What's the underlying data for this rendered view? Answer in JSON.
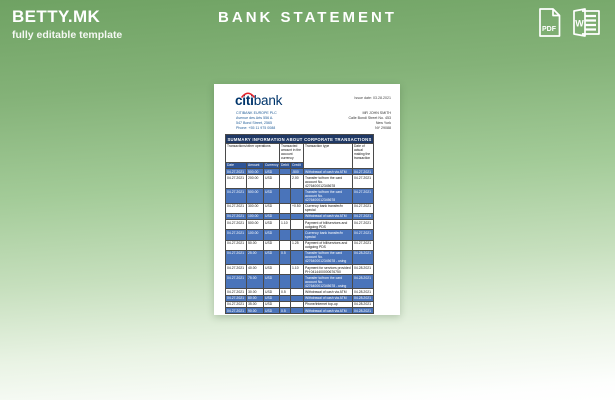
{
  "header": {
    "brand": "BETTY.MK",
    "tagline": "fully editable template",
    "title": "BANK STATEMENT",
    "pdf_icon_label": "PDF",
    "word_icon_label": "W"
  },
  "colors": {
    "background_green_top": "#6fa263",
    "background_bottom": "#ffffff",
    "table_title_navy": "#1f3864",
    "table_subheader_blue": "#2f5597",
    "row_highlight_blue": "#4a74ba",
    "logo_blue": "#00356b",
    "logo_arc_red": "#e8232a"
  },
  "document": {
    "logo_citi": "citi",
    "logo_bank": "bank",
    "bank_lines": [
      "CITIBANK EUROPE PLC",
      "Avenue des Arts 556 A.",
      "547 Bond Street, 2565",
      "Phone: +55 11 975 0088"
    ],
    "issue_date": "Issue date: 03.28.2021",
    "recipient_lines": [
      "MR JOHN SMITH",
      "Calle Bondi Street No. 453",
      "New York",
      "NY 29088"
    ],
    "table": {
      "title": "SUMMARY INFORMATION ABOUT CORPORATE TRANSACTIONS",
      "groups": [
        "Transactions/other operations",
        "Transacted amount in the account currency",
        "Transaction type",
        "Date of actual making the transaction"
      ],
      "subheaders": [
        "Date",
        "Amount",
        "Currency",
        "Debit",
        "Credit"
      ],
      "rows": [
        {
          "highlight": true,
          "cells": [
            "04.27.2021",
            "500.00",
            "USD",
            "",
            "-500",
            "Withdrawal of cash via ATM",
            "04.27.2021"
          ]
        },
        {
          "highlight": false,
          "cells": [
            "04.27.2021",
            "200.00",
            "USD",
            "",
            "2.00",
            "Transfer to/from the card account No. 4276400012345678",
            "04.27.2021"
          ]
        },
        {
          "highlight": true,
          "cells": [
            "04.27.2021",
            "500.00",
            "USD",
            "",
            "",
            "Transfer to/from the card account No. 4276400012345678",
            "04.27.2021"
          ]
        },
        {
          "highlight": false,
          "cells": [
            "04.27.2021",
            "300.00",
            "USD",
            "",
            "+0.50",
            "Currency bank transfer/in special",
            "04.27.2021"
          ]
        },
        {
          "highlight": true,
          "cells": [
            "04.27.2021",
            "100.00",
            "USD",
            "",
            "",
            "Withdrawal of cash via ATM",
            "04.27.2021"
          ]
        },
        {
          "highlight": false,
          "cells": [
            "04.27.2021",
            "500.00",
            "USD",
            "1.10",
            "",
            "Payment of bill/services and outgoing PDS",
            "04.27.2021"
          ]
        },
        {
          "highlight": true,
          "cells": [
            "04.27.2021",
            "100.00",
            "USD",
            "",
            "",
            "Currency bank transfer/in special",
            "04.27.2021"
          ]
        },
        {
          "highlight": false,
          "cells": [
            "04.27.2021",
            "50.00",
            "USD",
            "",
            "1.25",
            "Payment of bill/services and outgoing PDS",
            "04.27.2021"
          ]
        },
        {
          "highlight": true,
          "cells": [
            "04.27.2021",
            "25.00",
            "USD",
            "0.5",
            "",
            "Transfer to/from the card account No. 4276400012345678 - using",
            "04.28.2021"
          ]
        },
        {
          "highlight": false,
          "cells": [
            "04.27.2021",
            "40.00",
            "USD",
            "",
            "1.10",
            "Payment for services provided PH 0414400000676750",
            "04.28.2021"
          ]
        },
        {
          "highlight": true,
          "cells": [
            "04.27.2021",
            "75.00",
            "USD",
            "",
            "",
            "Transfer to/from the card account No. 4276400012345678 - using",
            "04.28.2021"
          ]
        },
        {
          "highlight": false,
          "cells": [
            "04.27.2021",
            "30.00",
            "USD",
            "0.5",
            "",
            "Withdrawal of cash via ATM",
            "04.28.2021"
          ]
        },
        {
          "highlight": true,
          "cells": [
            "04.27.2021",
            "80.00",
            "USD",
            "",
            "",
            "Withdrawal of cash via ATM",
            "04.28.2021"
          ]
        },
        {
          "highlight": false,
          "cells": [
            "04.27.2021",
            "35.00",
            "USD",
            "",
            "",
            "Phone/internet top-up",
            "04.28.2021"
          ]
        },
        {
          "highlight": true,
          "cells": [
            "04.27.2021",
            "90.00",
            "USD",
            "0.5",
            "",
            "Withdrawal of cash via ATM",
            "04.28.2021"
          ]
        }
      ]
    }
  }
}
